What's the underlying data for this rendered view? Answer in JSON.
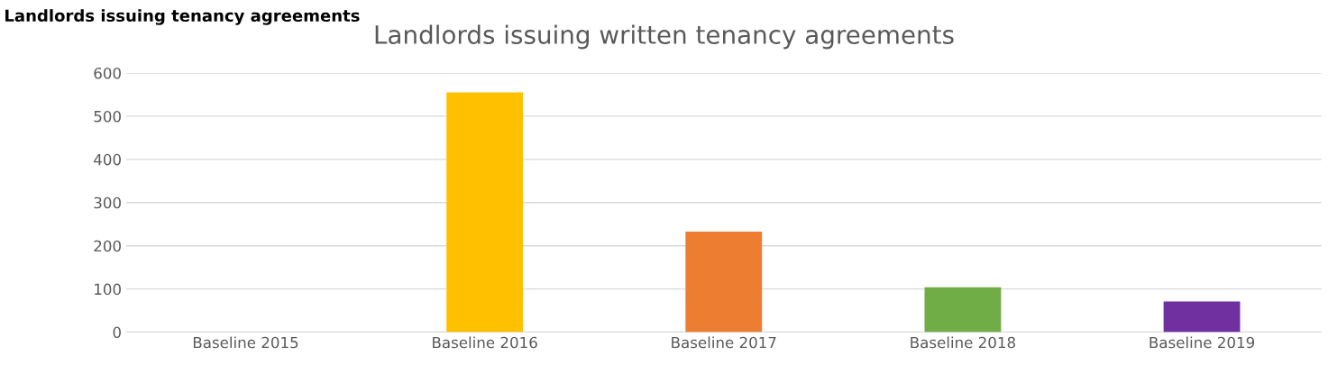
{
  "chart_data": {
    "type": "bar",
    "title": "Landlords issuing written tenancy agreements",
    "annotations": [
      "Landlords issuing tenancy agreements"
    ],
    "categories": [
      "Baseline 2015",
      "Baseline 2016",
      "Baseline 2017",
      "Baseline 2018",
      "Baseline 2019"
    ],
    "values": [
      0,
      555,
      233,
      104,
      71
    ],
    "colors": [
      "#5b9bd5",
      "#ffc000",
      "#ed7d31",
      "#70ad47",
      "#7030a0"
    ],
    "ylim": [
      0,
      600
    ],
    "yticks": [
      0,
      100,
      200,
      300,
      400,
      500,
      600
    ],
    "grid": "y",
    "legend": false
  }
}
